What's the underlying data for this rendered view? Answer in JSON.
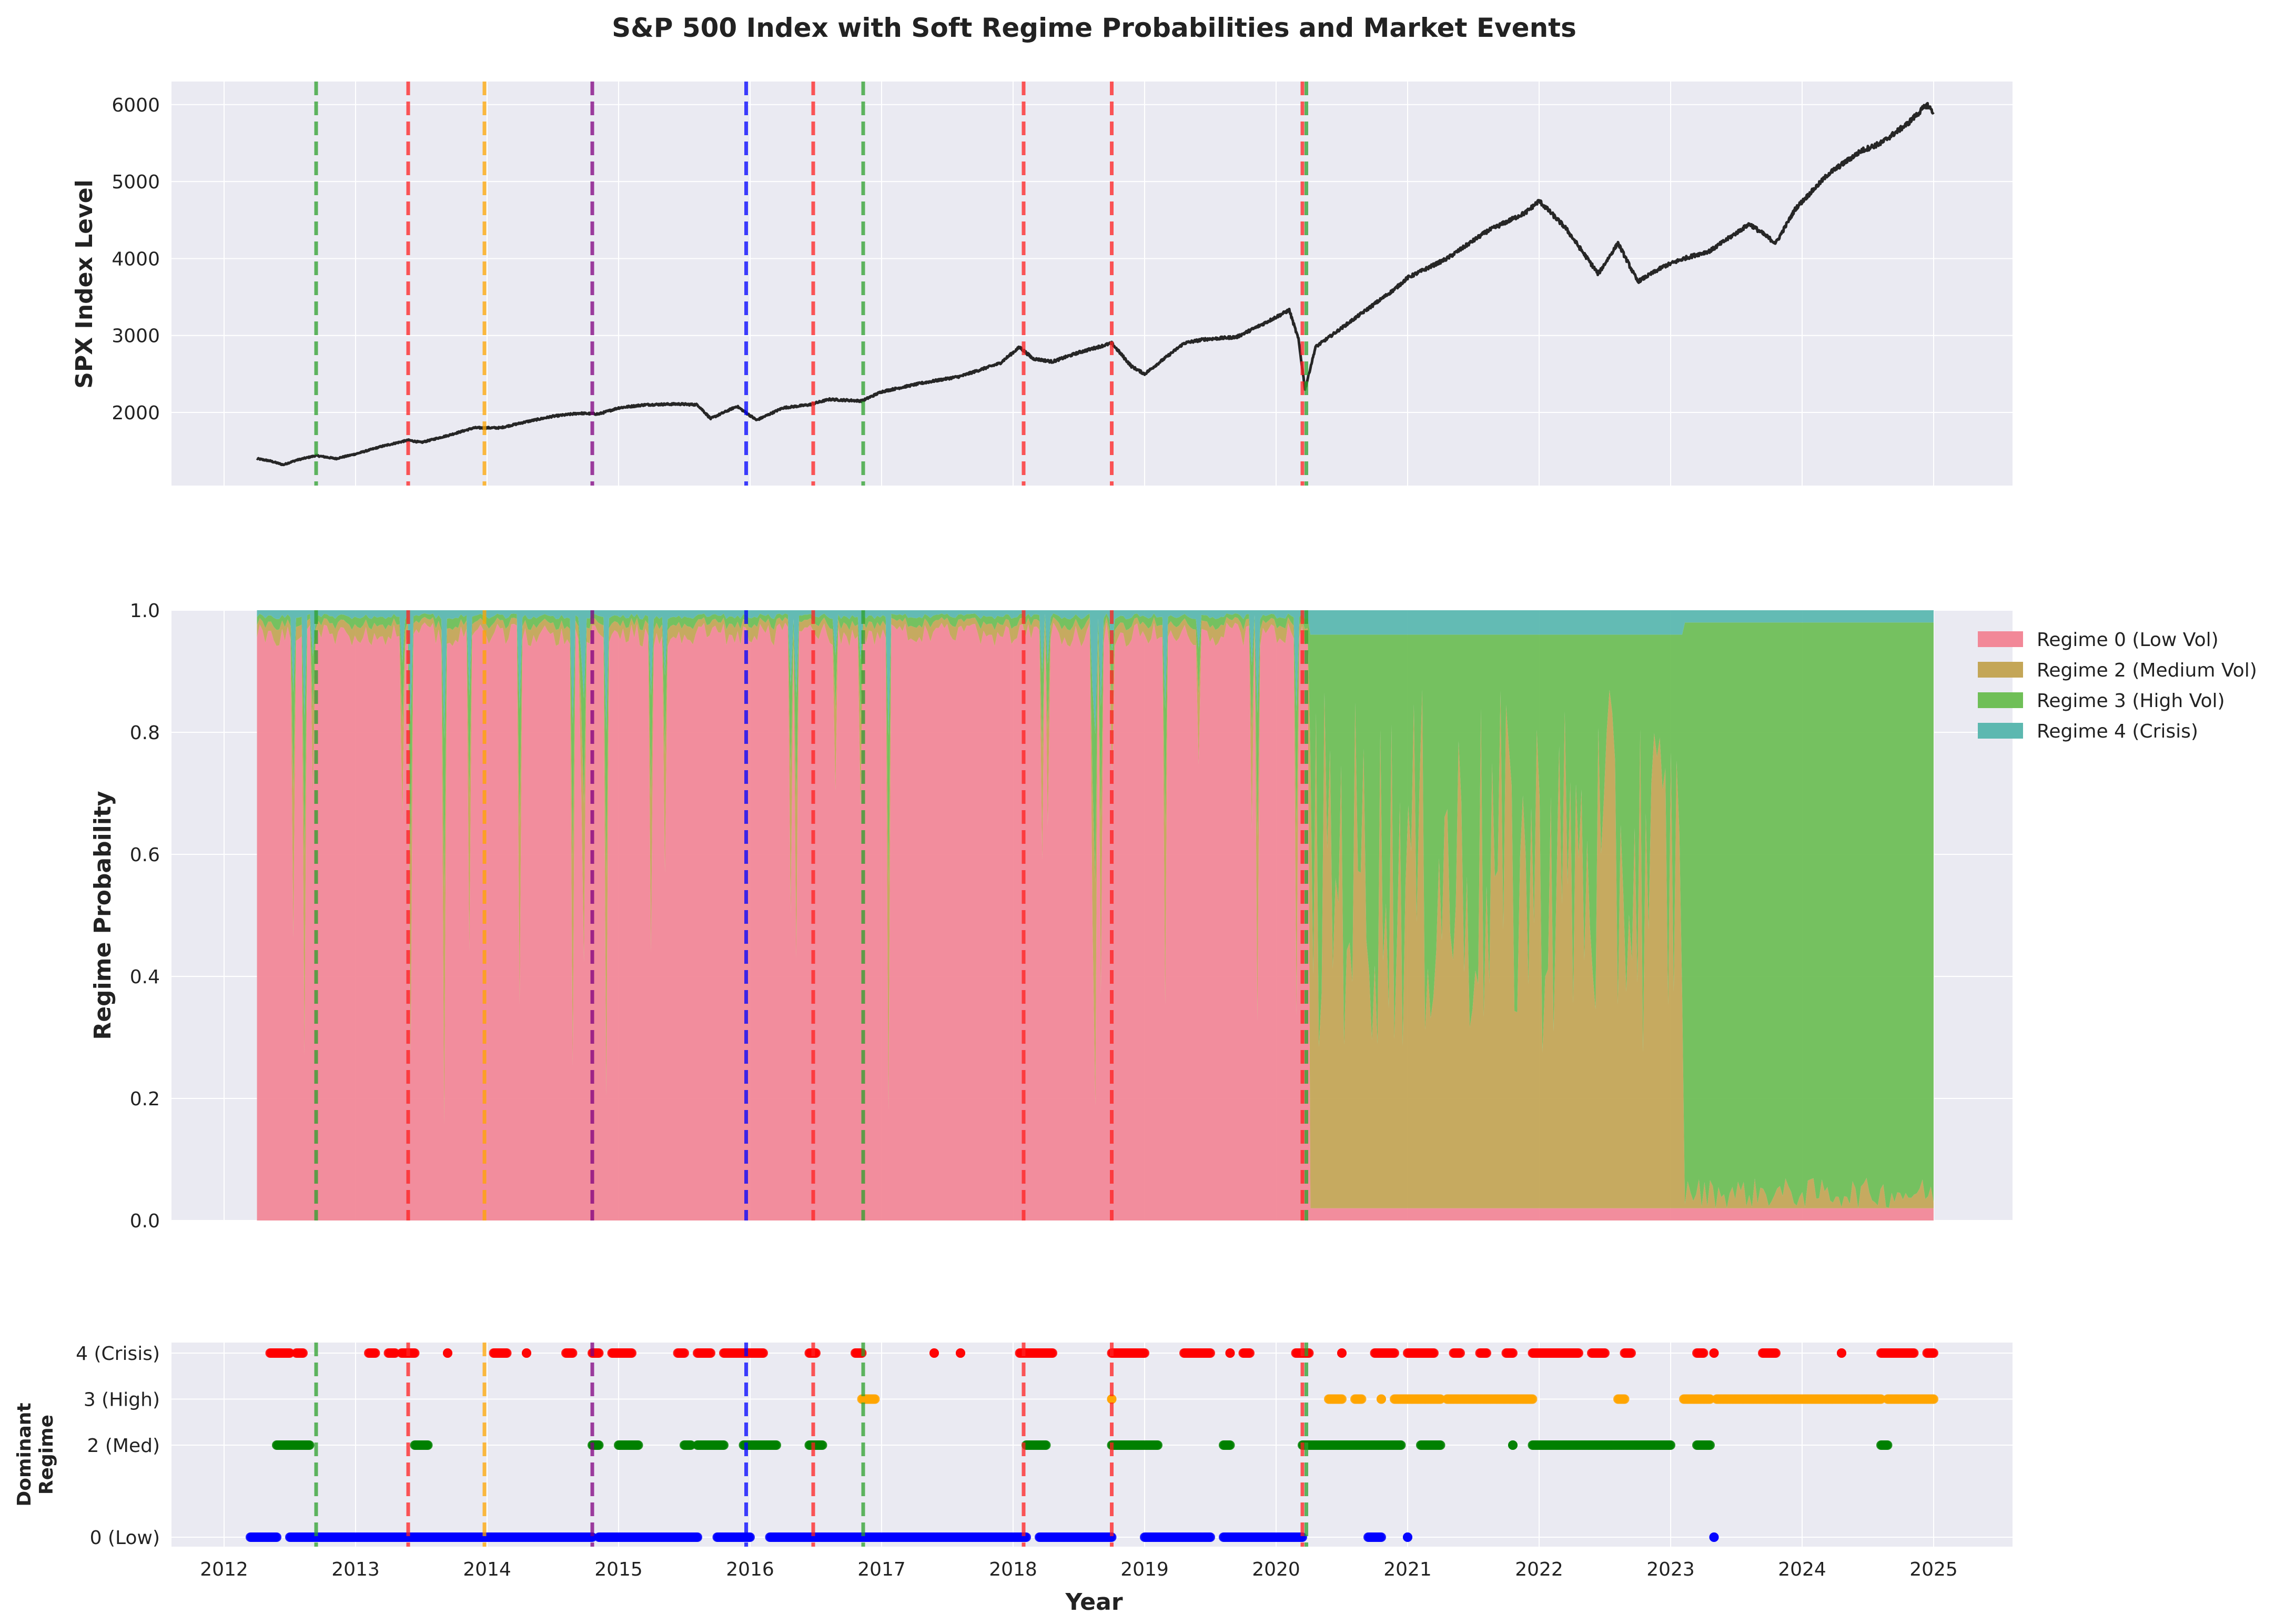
{
  "title": "S&P 500 Index with Soft Regime Probabilities and Market Events",
  "colors": {
    "plot_bg": "#eaeaf2",
    "grid": "#ffffff",
    "price_line": "#262626",
    "regime0": "#f28898",
    "regime2": "#c4a657",
    "regime3": "#6fbf57",
    "regime4": "#5cb8b0",
    "dom0": "#0000ff",
    "dom2": "#008000",
    "dom3": "#ffa500",
    "dom4": "#ff0000"
  },
  "xaxis": {
    "label": "Year",
    "ticks": [
      "2012",
      "2013",
      "2014",
      "2015",
      "2016",
      "2017",
      "2018",
      "2019",
      "2020",
      "2021",
      "2022",
      "2023",
      "2024",
      "2025"
    ]
  },
  "panel1": {
    "ylabel": "SPX Index Level",
    "yticks": [
      "2000",
      "3000",
      "4000",
      "5000",
      "6000"
    ]
  },
  "panel2": {
    "ylabel": "Regime Probability",
    "yticks": [
      "0.0",
      "0.2",
      "0.4",
      "0.6",
      "0.8",
      "1.0"
    ],
    "legend": [
      "Regime 0 (Low Vol)",
      "Regime 2 (Medium Vol)",
      "Regime 3 (High Vol)",
      "Regime 4 (Crisis)"
    ]
  },
  "panel3": {
    "ylabel_line1": "Dominant",
    "ylabel_line2": "Regime",
    "yticks": [
      "0 (Low)",
      "2 (Med)",
      "3 (High)",
      "4 (Crisis)"
    ]
  },
  "chart_data": [
    {
      "type": "line",
      "title": "S&P 500 Index with Soft Regime Probabilities and Market Events",
      "ylabel": "SPX Index Level",
      "xlabel": "",
      "xlim": [
        2011.6,
        2025.6
      ],
      "ylim": [
        1050,
        6300
      ],
      "grid": true,
      "series": [
        {
          "values_note_free": true,
          "x": [
            2012.25,
            2012.35,
            2012.45,
            2012.55,
            2012.7,
            2012.85,
            2013.0,
            2013.2,
            2013.4,
            2013.5,
            2013.7,
            2013.9,
            2014.1,
            2014.3,
            2014.5,
            2014.7,
            2014.85,
            2015.0,
            2015.2,
            2015.45,
            2015.6,
            2015.7,
            2015.9,
            2016.05,
            2016.25,
            2016.45,
            2016.6,
            2016.85,
            2017.0,
            2017.3,
            2017.6,
            2017.9,
            2018.05,
            2018.15,
            2018.3,
            2018.5,
            2018.75,
            2018.9,
            2019.0,
            2019.3,
            2019.45,
            2019.7,
            2019.9,
            2020.1,
            2020.17,
            2020.22,
            2020.3,
            2020.5,
            2020.7,
            2020.9,
            2021.0,
            2021.3,
            2021.6,
            2021.9,
            2022.0,
            2022.2,
            2022.45,
            2022.6,
            2022.75,
            2022.95,
            2023.1,
            2023.3,
            2023.6,
            2023.8,
            2023.95,
            2024.2,
            2024.45,
            2024.6,
            2024.8,
            2024.95,
            2025.0
          ],
          "values": [
            1400,
            1370,
            1320,
            1380,
            1440,
            1400,
            1460,
            1560,
            1640,
            1610,
            1700,
            1800,
            1800,
            1880,
            1950,
            1990,
            1980,
            2060,
            2100,
            2110,
            2100,
            1920,
            2080,
            1900,
            2060,
            2100,
            2170,
            2150,
            2270,
            2380,
            2470,
            2640,
            2850,
            2700,
            2660,
            2780,
            2900,
            2600,
            2500,
            2900,
            2950,
            2980,
            3150,
            3330,
            2950,
            2300,
            2850,
            3100,
            3350,
            3600,
            3750,
            4000,
            4350,
            4600,
            4750,
            4400,
            3800,
            4200,
            3700,
            3900,
            4000,
            4100,
            4450,
            4200,
            4650,
            5100,
            5400,
            5500,
            5750,
            6000,
            5900
          ]
        }
      ]
    },
    {
      "type": "area",
      "ylabel": "Regime Probability",
      "xlabel": "",
      "xlim": [
        2011.6,
        2025.6
      ],
      "ylim": [
        0,
        1
      ],
      "legend_position": "outside-right",
      "grid": true,
      "x": [
        2012.25,
        2020.25,
        2020.3,
        2020.35,
        2025.0
      ],
      "series": [
        {
          "name": "Regime 0 (Low Vol)",
          "description": "dominant ~2012.25–2020.25 (prob ≈ 0.95–1.0), near 0 afterwards",
          "values": [
            0.97,
            0.95,
            0.0,
            0.05,
            0.02
          ]
        },
        {
          "name": "Regime 2 (Medium Vol)",
          "description": "dominant mid 2020–early 2023",
          "values": [
            0.01,
            0.02,
            0.6,
            0.6,
            0.02
          ]
        },
        {
          "name": "Regime 3 (High Vol)",
          "description": "dominant 2023–2025",
          "values": [
            0.01,
            0.02,
            0.35,
            0.3,
            0.94
          ]
        },
        {
          "name": "Regime 4 (Crisis)",
          "values": [
            0.01,
            0.01,
            0.05,
            0.05,
            0.02
          ]
        }
      ]
    },
    {
      "type": "scatter",
      "ylabel": "Dominant Regime",
      "xlabel": "Year",
      "xlim": [
        2011.6,
        2025.6
      ],
      "y_categories": [
        "0 (Low)",
        "2 (Med)",
        "3 (High)",
        "4 (Crisis)"
      ],
      "series": [
        {
          "name": "0 (Low)",
          "x_ranges": [
            [
              2012.2,
              2012.4
            ],
            [
              2012.5,
              2014.8
            ],
            [
              2014.85,
              2015.6
            ],
            [
              2015.75,
              2016.0
            ],
            [
              2016.15,
              2018.1
            ],
            [
              2018.2,
              2018.75
            ],
            [
              2019.0,
              2019.5
            ],
            [
              2019.6,
              2020.2
            ],
            [
              2020.7,
              2020.8
            ],
            [
              2021.0,
              2021.0
            ],
            [
              2023.33,
              2023.33
            ]
          ]
        },
        {
          "name": "2 (Med)",
          "x_ranges": [
            [
              2012.4,
              2012.65
            ],
            [
              2013.45,
              2013.55
            ],
            [
              2014.8,
              2014.85
            ],
            [
              2015.0,
              2015.15
            ],
            [
              2015.5,
              2015.55
            ],
            [
              2015.6,
              2015.8
            ],
            [
              2015.95,
              2016.2
            ],
            [
              2016.45,
              2016.55
            ],
            [
              2018.1,
              2018.25
            ],
            [
              2018.75,
              2019.1
            ],
            [
              2019.6,
              2019.65
            ],
            [
              2020.2,
              2020.95
            ],
            [
              2021.1,
              2021.25
            ],
            [
              2021.8,
              2021.8
            ],
            [
              2021.95,
              2022.55
            ],
            [
              2022.55,
              2023.0
            ],
            [
              2023.2,
              2023.3
            ],
            [
              2024.6,
              2024.65
            ]
          ]
        },
        {
          "name": "3 (High)",
          "x_ranges": [
            [
              2016.85,
              2016.95
            ],
            [
              2018.75,
              2018.75
            ],
            [
              2020.4,
              2020.5
            ],
            [
              2020.6,
              2020.65
            ],
            [
              2020.8,
              2020.8
            ],
            [
              2020.9,
              2021.25
            ],
            [
              2021.3,
              2021.95
            ],
            [
              2022.6,
              2022.65
            ],
            [
              2023.1,
              2023.3
            ],
            [
              2023.35,
              2024.6
            ],
            [
              2024.65,
              2025.0
            ]
          ]
        },
        {
          "name": "4 (Crisis)",
          "x_ranges": [
            [
              2012.35,
              2012.5
            ],
            [
              2012.55,
              2012.6
            ],
            [
              2013.1,
              2013.15
            ],
            [
              2013.25,
              2013.3
            ],
            [
              2013.35,
              2013.45
            ],
            [
              2013.7,
              2013.7
            ],
            [
              2014.05,
              2014.15
            ],
            [
              2014.3,
              2014.3
            ],
            [
              2014.6,
              2014.65
            ],
            [
              2014.8,
              2014.85
            ],
            [
              2014.95,
              2015.1
            ],
            [
              2015.45,
              2015.5
            ],
            [
              2015.6,
              2015.7
            ],
            [
              2015.8,
              2016.1
            ],
            [
              2016.45,
              2016.5
            ],
            [
              2016.8,
              2016.85
            ],
            [
              2017.4,
              2017.4
            ],
            [
              2017.6,
              2017.6
            ],
            [
              2018.05,
              2018.3
            ],
            [
              2018.75,
              2019.0
            ],
            [
              2019.3,
              2019.5
            ],
            [
              2019.65,
              2019.65
            ],
            [
              2019.75,
              2019.8
            ],
            [
              2020.15,
              2020.25
            ],
            [
              2020.5,
              2020.5
            ],
            [
              2020.75,
              2020.9
            ],
            [
              2021.0,
              2021.2
            ],
            [
              2021.35,
              2021.4
            ],
            [
              2021.55,
              2021.6
            ],
            [
              2021.75,
              2021.8
            ],
            [
              2021.95,
              2022.3
            ],
            [
              2022.4,
              2022.5
            ],
            [
              2022.65,
              2022.7
            ],
            [
              2023.2,
              2023.25
            ],
            [
              2023.33,
              2023.33
            ],
            [
              2023.7,
              2023.8
            ],
            [
              2024.3,
              2024.3
            ],
            [
              2024.6,
              2024.85
            ],
            [
              2024.95,
              2025.0
            ]
          ]
        }
      ]
    }
  ],
  "events": [
    {
      "x": 2012.7,
      "color": "#2ca02c"
    },
    {
      "x": 2013.4,
      "color": "#ff2020"
    },
    {
      "x": 2013.98,
      "color": "#ffa500"
    },
    {
      "x": 2014.8,
      "color": "#800080"
    },
    {
      "x": 2015.97,
      "color": "#0000ff"
    },
    {
      "x": 2016.48,
      "color": "#ff2020"
    },
    {
      "x": 2016.86,
      "color": "#2ca02c"
    },
    {
      "x": 2018.08,
      "color": "#ff2020"
    },
    {
      "x": 2018.75,
      "color": "#ff2020"
    },
    {
      "x": 2020.2,
      "color": "#ff2020"
    },
    {
      "x": 2020.23,
      "color": "#2ca02c"
    }
  ]
}
